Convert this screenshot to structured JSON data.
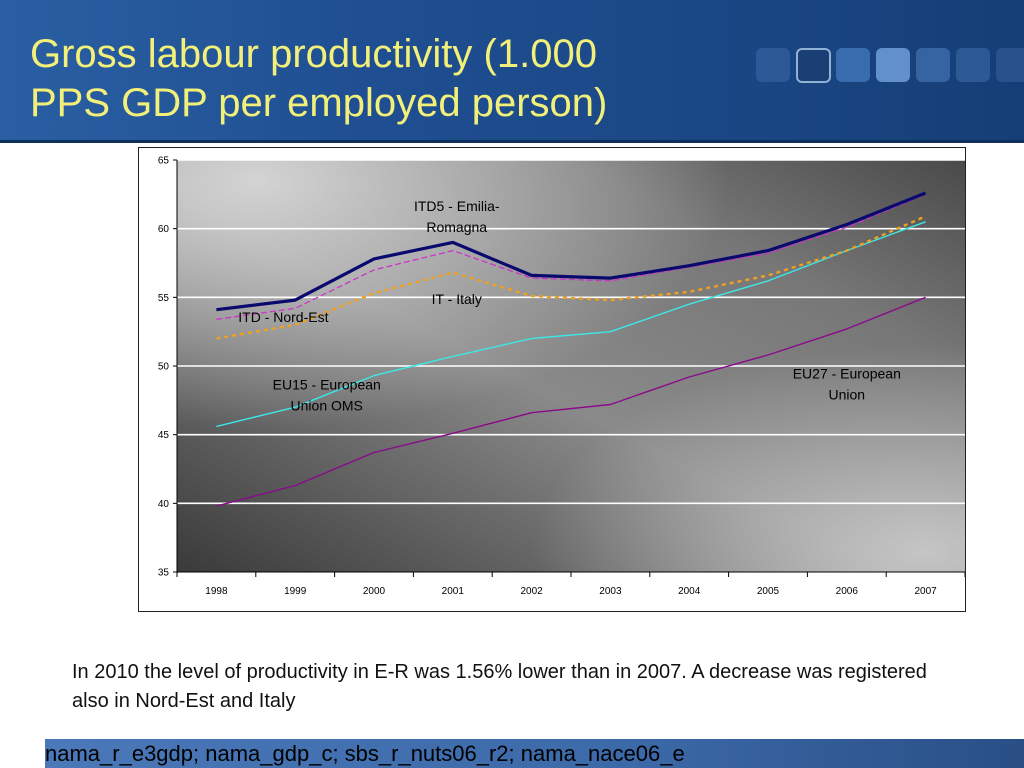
{
  "slide": {
    "title_line1": "Gross labour productivity (1.000",
    "title_line2": "PPS GDP per employed person)",
    "caption": "In 2010 the level of productivity in E-R was 1.56% lower than in 2007. A decrease was registered also in Nord-Est and Italy",
    "footer": "nama_r_e3gdp; nama_gdp_c; sbs_r_nuts06_r2; nama_nace06_e"
  },
  "chart_data": {
    "type": "line",
    "title": "",
    "xlabel": "",
    "ylabel": "",
    "ylim": [
      35,
      65
    ],
    "yticks": [
      35,
      40,
      45,
      50,
      55,
      60,
      65
    ],
    "grid": true,
    "categories": [
      "1998",
      "1999",
      "2000",
      "2001",
      "2002",
      "2003",
      "2004",
      "2005",
      "2006",
      "2007"
    ],
    "series": [
      {
        "name": "ITD5 - Emilia-Romagna",
        "label_lines": [
          "ITD5 - Emilia-",
          "Romagna"
        ],
        "color": "#0a0a6e",
        "style": "solid-thick",
        "values": [
          54.1,
          54.8,
          57.8,
          59.0,
          56.6,
          56.4,
          57.3,
          58.4,
          60.3,
          62.6
        ]
      },
      {
        "name": "ITD - Nord-Est",
        "label_lines": [
          "ITD - Nord-Est"
        ],
        "color": "#cc33cc",
        "style": "dashed",
        "values": [
          53.4,
          54.2,
          57.0,
          58.4,
          56.4,
          56.2,
          57.2,
          58.2,
          60.1,
          62.5
        ]
      },
      {
        "name": "IT - Italy",
        "label_lines": [
          "IT - Italy"
        ],
        "color": "#f0a020",
        "style": "dotted",
        "values": [
          52.0,
          53.0,
          55.3,
          56.8,
          55.1,
          54.8,
          55.4,
          56.6,
          58.4,
          60.9
        ]
      },
      {
        "name": "EU15 - European Union OMS",
        "label_lines": [
          "EU15 - European",
          "Union OMS"
        ],
        "color": "#3ee6e6",
        "style": "solid",
        "values": [
          45.6,
          47.0,
          49.3,
          50.7,
          52.0,
          52.5,
          54.5,
          56.2,
          58.4,
          60.5
        ]
      },
      {
        "name": "EU27 - European Union",
        "label_lines": [
          "EU27 - European",
          "Union"
        ],
        "color": "#8a0a8a",
        "style": "solid",
        "values": [
          39.8,
          41.3,
          43.7,
          45.1,
          46.6,
          47.2,
          49.2,
          50.8,
          52.7,
          55.0
        ]
      }
    ]
  }
}
